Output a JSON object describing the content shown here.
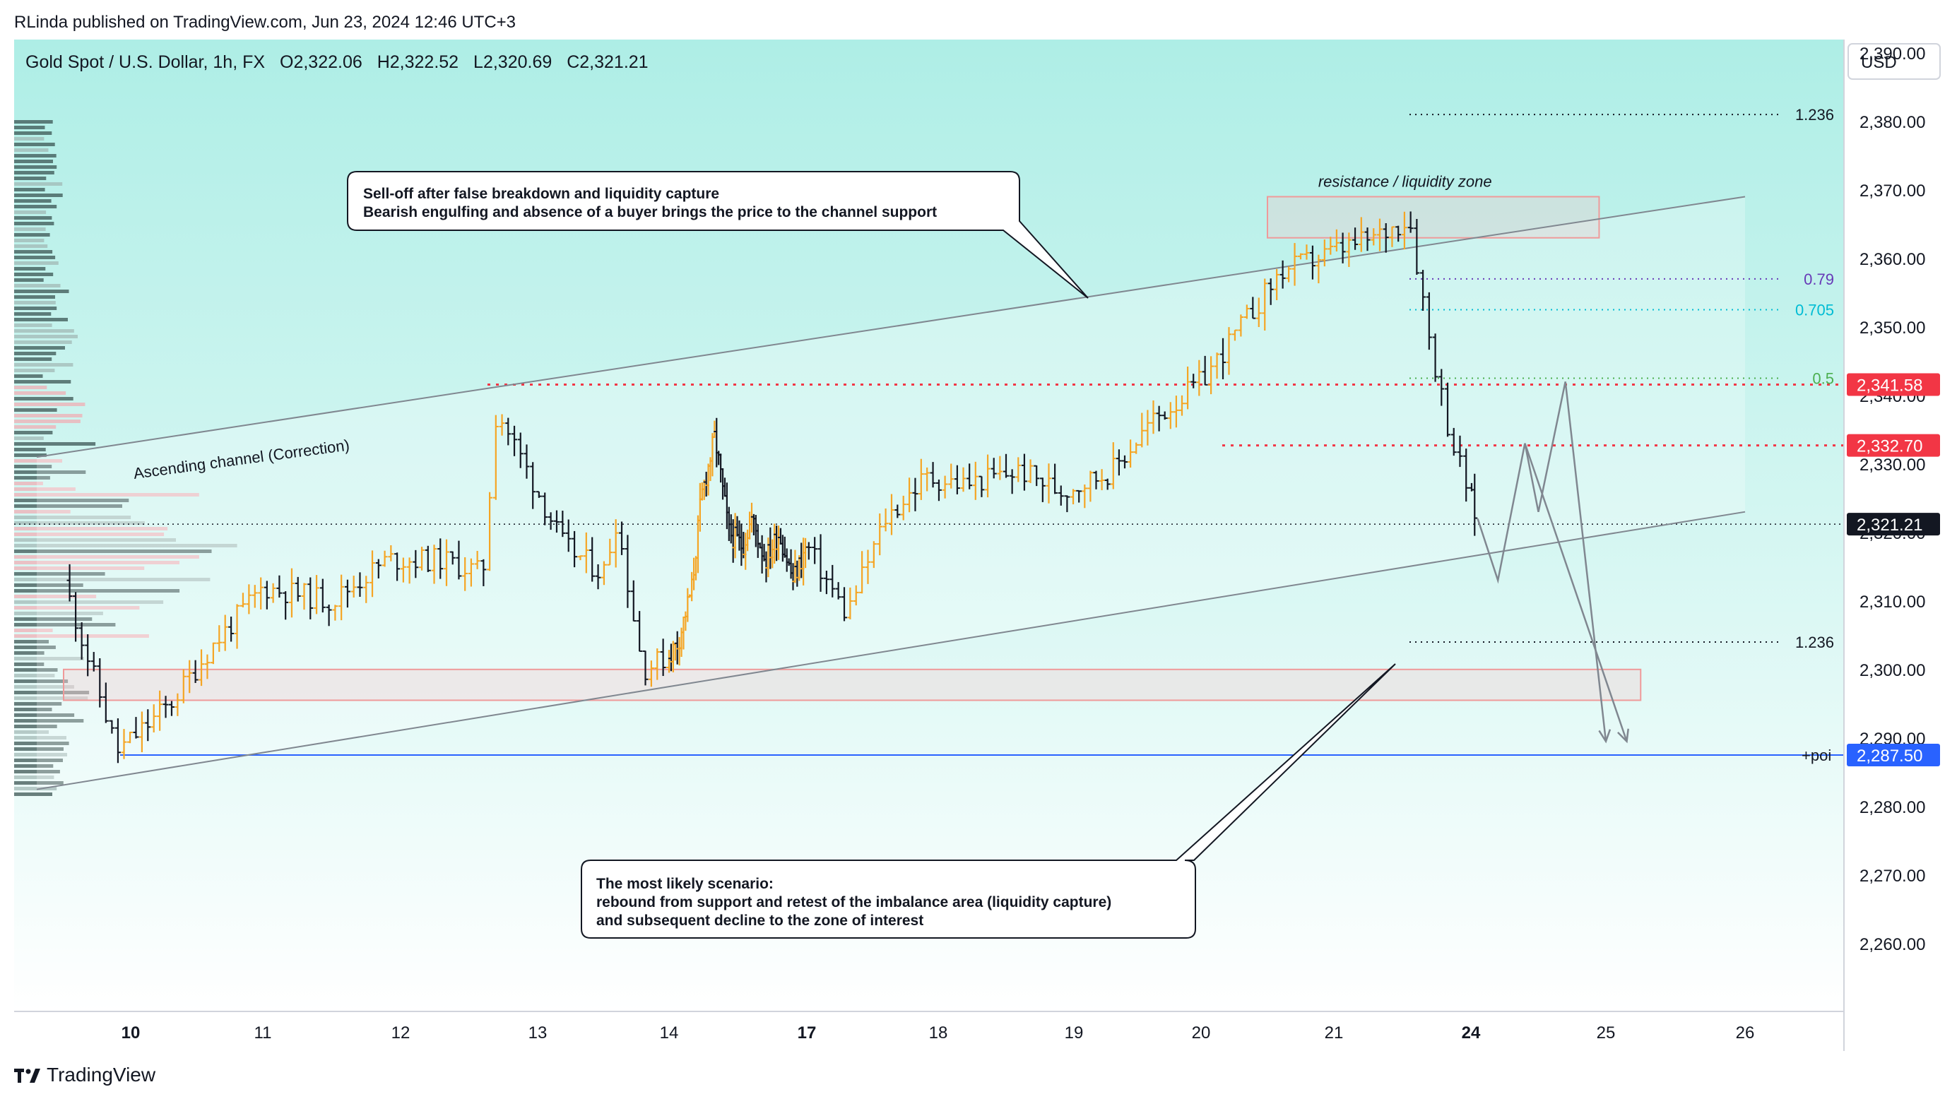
{
  "header": {
    "publisher_line": "RLinda published on TradingView.com, Jun 23, 2024 12:46 UTC+3"
  },
  "symbol": {
    "name": "Gold Spot / U.S. Dollar, 1h, FX",
    "open": "O2,322.06",
    "high": "H2,322.52",
    "low": "L2,320.69",
    "close": "C2,321.21"
  },
  "currency": "USD",
  "footer": {
    "brand": "TradingView"
  },
  "colors": {
    "up": "#f5a524",
    "down": "#131722",
    "tag_red": "#f23645",
    "tag_blue": "#2962ff",
    "tag_dark": "#131722",
    "bg_top": "#aeeee6",
    "bg_bottom": "#ffffff",
    "zone_border": "#ef9a9a"
  },
  "chart_data": {
    "type": "candlestick",
    "instrument": "Gold Spot / U.S. Dollar",
    "timeframe": "1h",
    "ylim": [
      2254,
      2398
    ],
    "y_ticks": [
      2260,
      2270,
      2280,
      2290,
      2300,
      2310,
      2320,
      2330,
      2340,
      2350,
      2360,
      2370,
      2380,
      2390
    ],
    "y_tick_labels": [
      "2,260.00",
      "2,270.00",
      "2,280.00",
      "2,290.00",
      "2,300.00",
      "2,310.00",
      "2,320.00",
      "2,330.00",
      "2,340.00",
      "2,350.00",
      "2,360.00",
      "2,370.00",
      "2,380.00",
      "2,390.00"
    ],
    "x_ticks": [
      {
        "label": "10",
        "bold": true
      },
      {
        "label": "11"
      },
      {
        "label": "12"
      },
      {
        "label": "13"
      },
      {
        "label": "14"
      },
      {
        "label": "17",
        "bold": true
      },
      {
        "label": "18"
      },
      {
        "label": "19"
      },
      {
        "label": "20"
      },
      {
        "label": "21"
      },
      {
        "label": "24",
        "bold": true
      },
      {
        "label": "25"
      },
      {
        "label": "26"
      }
    ],
    "price_series": [
      {
        "day": 9.5,
        "price": 2313
      },
      {
        "day": 9.9,
        "price": 2288
      },
      {
        "day": 10.3,
        "price": 2295
      },
      {
        "day": 10.6,
        "price": 2303
      },
      {
        "day": 11.0,
        "price": 2312
      },
      {
        "day": 11.5,
        "price": 2310
      },
      {
        "day": 11.9,
        "price": 2316
      },
      {
        "day": 12.3,
        "price": 2316
      },
      {
        "day": 12.6,
        "price": 2314
      },
      {
        "day": 12.7,
        "price": 2338
      },
      {
        "day": 12.9,
        "price": 2330
      },
      {
        "day": 13.2,
        "price": 2318
      },
      {
        "day": 13.5,
        "price": 2314
      },
      {
        "day": 13.6,
        "price": 2322
      },
      {
        "day": 13.8,
        "price": 2300
      },
      {
        "day": 14.2,
        "price": 2304
      },
      {
        "day": 14.5,
        "price": 2312
      },
      {
        "day": 14.7,
        "price": 2325
      },
      {
        "day": 15.0,
        "price": 2334
      },
      {
        "day": 15.3,
        "price": 2320
      },
      {
        "day": 15.6,
        "price": 2318
      },
      {
        "day": 15.8,
        "price": 2322
      },
      {
        "day": 16.1,
        "price": 2316
      },
      {
        "day": 16.4,
        "price": 2320
      },
      {
        "day": 16.7,
        "price": 2313
      },
      {
        "day": 17.0,
        "price": 2318
      },
      {
        "day": 17.3,
        "price": 2308
      },
      {
        "day": 17.6,
        "price": 2322
      },
      {
        "day": 17.9,
        "price": 2328
      },
      {
        "day": 18.2,
        "price": 2327
      },
      {
        "day": 18.6,
        "price": 2329
      },
      {
        "day": 18.9,
        "price": 2326
      },
      {
        "day": 19.3,
        "price": 2329
      },
      {
        "day": 19.6,
        "price": 2336
      },
      {
        "day": 20.0,
        "price": 2342
      },
      {
        "day": 20.6,
        "price": 2358
      },
      {
        "day": 21.0,
        "price": 2361
      },
      {
        "day": 21.3,
        "price": 2363
      },
      {
        "day": 21.55,
        "price": 2366
      },
      {
        "day": 21.7,
        "price": 2348
      },
      {
        "day": 21.85,
        "price": 2334
      },
      {
        "day": 22.0,
        "price": 2325
      },
      {
        "day": 22.1,
        "price": 2321.21
      }
    ],
    "last_price": 2321.21,
    "channel": {
      "label": "Ascending channel (Correction)",
      "upper": [
        {
          "day": 9.3,
          "price": 2331
        },
        {
          "day": 26.0,
          "price": 2369
        }
      ],
      "lower": [
        {
          "day": 9.3,
          "price": 2282.5
        },
        {
          "day": 26.0,
          "price": 2323
        }
      ]
    },
    "zones": [
      {
        "label": "resistance / liquidity zone",
        "x0": 20.5,
        "x1": 23.9,
        "y0": 2363,
        "y1": 2369
      },
      {
        "label": "",
        "x0": 9.5,
        "x1": 24.5,
        "y0": 2295.5,
        "y1": 2300
      }
    ],
    "levels": [
      {
        "price": 2341.58,
        "label": "2,341.58",
        "tag_color": "#f23645",
        "style": "dotted",
        "line_color": "#f23645"
      },
      {
        "price": 2332.7,
        "label": "2,332.70",
        "tag_color": "#f23645",
        "style": "dotted",
        "line_color": "#f23645"
      },
      {
        "price": 2287.5,
        "label": "2,287.50",
        "tag_color": "#2962ff",
        "style": "solid",
        "line_color": "#2962ff",
        "side_label": "+poi"
      }
    ],
    "fibonacci": [
      {
        "level": "1.236",
        "price": 2381,
        "color": "#131722"
      },
      {
        "level": "0.79",
        "price": 2357,
        "color": "#673ab7"
      },
      {
        "level": "0.705",
        "price": 2352.5,
        "color": "#00bcd4"
      },
      {
        "level": "0.5",
        "price": 2342.5,
        "color": "#4caf50"
      },
      {
        "level": "1.236",
        "price": 2304,
        "color": "#131722"
      }
    ],
    "projection": [
      {
        "day": 22.1,
        "price": 2322
      },
      {
        "day": 22.4,
        "price": 2313
      },
      {
        "day": 22.8,
        "price": 2333
      },
      {
        "day": 23.0,
        "price": 2323
      },
      {
        "day": 23.4,
        "price": 2342
      },
      {
        "day": 24.0,
        "price": 2289.5
      }
    ],
    "projection_alt": {
      "from": {
        "day": 22.8,
        "price": 2333
      },
      "to": {
        "day": 24.3,
        "price": 2289.5
      }
    },
    "annotations": [
      {
        "id": "selloff",
        "lines": [
          "Sell-off after false breakdown and liquidity capture",
          "Bearish engulfing and absence of a buyer brings the price to the channel support"
        ]
      },
      {
        "id": "scenario",
        "lines": [
          "The most likely scenario:",
          "rebound from support and retest of the imbalance area (liquidity capture)",
          "and subsequent decline to the zone of interest"
        ]
      }
    ]
  }
}
